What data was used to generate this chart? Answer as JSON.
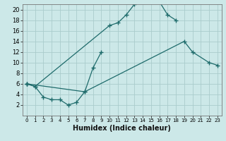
{
  "xlabel": "Humidex (Indice chaleur)",
  "background_color": "#cce8e8",
  "grid_color": "#aacccc",
  "line_color": "#1e6b6b",
  "xlim": [
    -0.5,
    23.5
  ],
  "ylim": [
    0,
    21
  ],
  "xticks": [
    0,
    1,
    2,
    3,
    4,
    5,
    6,
    7,
    8,
    9,
    10,
    11,
    12,
    13,
    14,
    15,
    16,
    17,
    18,
    19,
    20,
    21,
    22,
    23
  ],
  "yticks": [
    2,
    4,
    6,
    8,
    10,
    12,
    14,
    16,
    18,
    20
  ],
  "tick_fontsize": 5.5,
  "xlabel_fontsize": 7,
  "segments": {
    "line1": [
      [
        0,
        6
      ],
      [
        1,
        5.5
      ],
      [
        10,
        17
      ],
      [
        11,
        17.5
      ],
      [
        12,
        19
      ],
      [
        13,
        21
      ],
      [
        14,
        21.5
      ],
      [
        15,
        21.5
      ],
      [
        16,
        21.5
      ],
      [
        17,
        19
      ],
      [
        18,
        18
      ]
    ],
    "line2": [
      [
        0,
        6
      ],
      [
        1,
        5.5
      ],
      [
        2,
        3.5
      ],
      [
        3,
        3
      ],
      [
        4,
        3
      ],
      [
        5,
        2
      ],
      [
        6,
        2.5
      ],
      [
        7,
        4.5
      ],
      [
        8,
        9
      ],
      [
        9,
        12
      ]
    ],
    "line3": [
      [
        0,
        6
      ],
      [
        7,
        4.5
      ],
      [
        19,
        14
      ],
      [
        20,
        12
      ],
      [
        22,
        10
      ],
      [
        23,
        9.5
      ]
    ]
  }
}
